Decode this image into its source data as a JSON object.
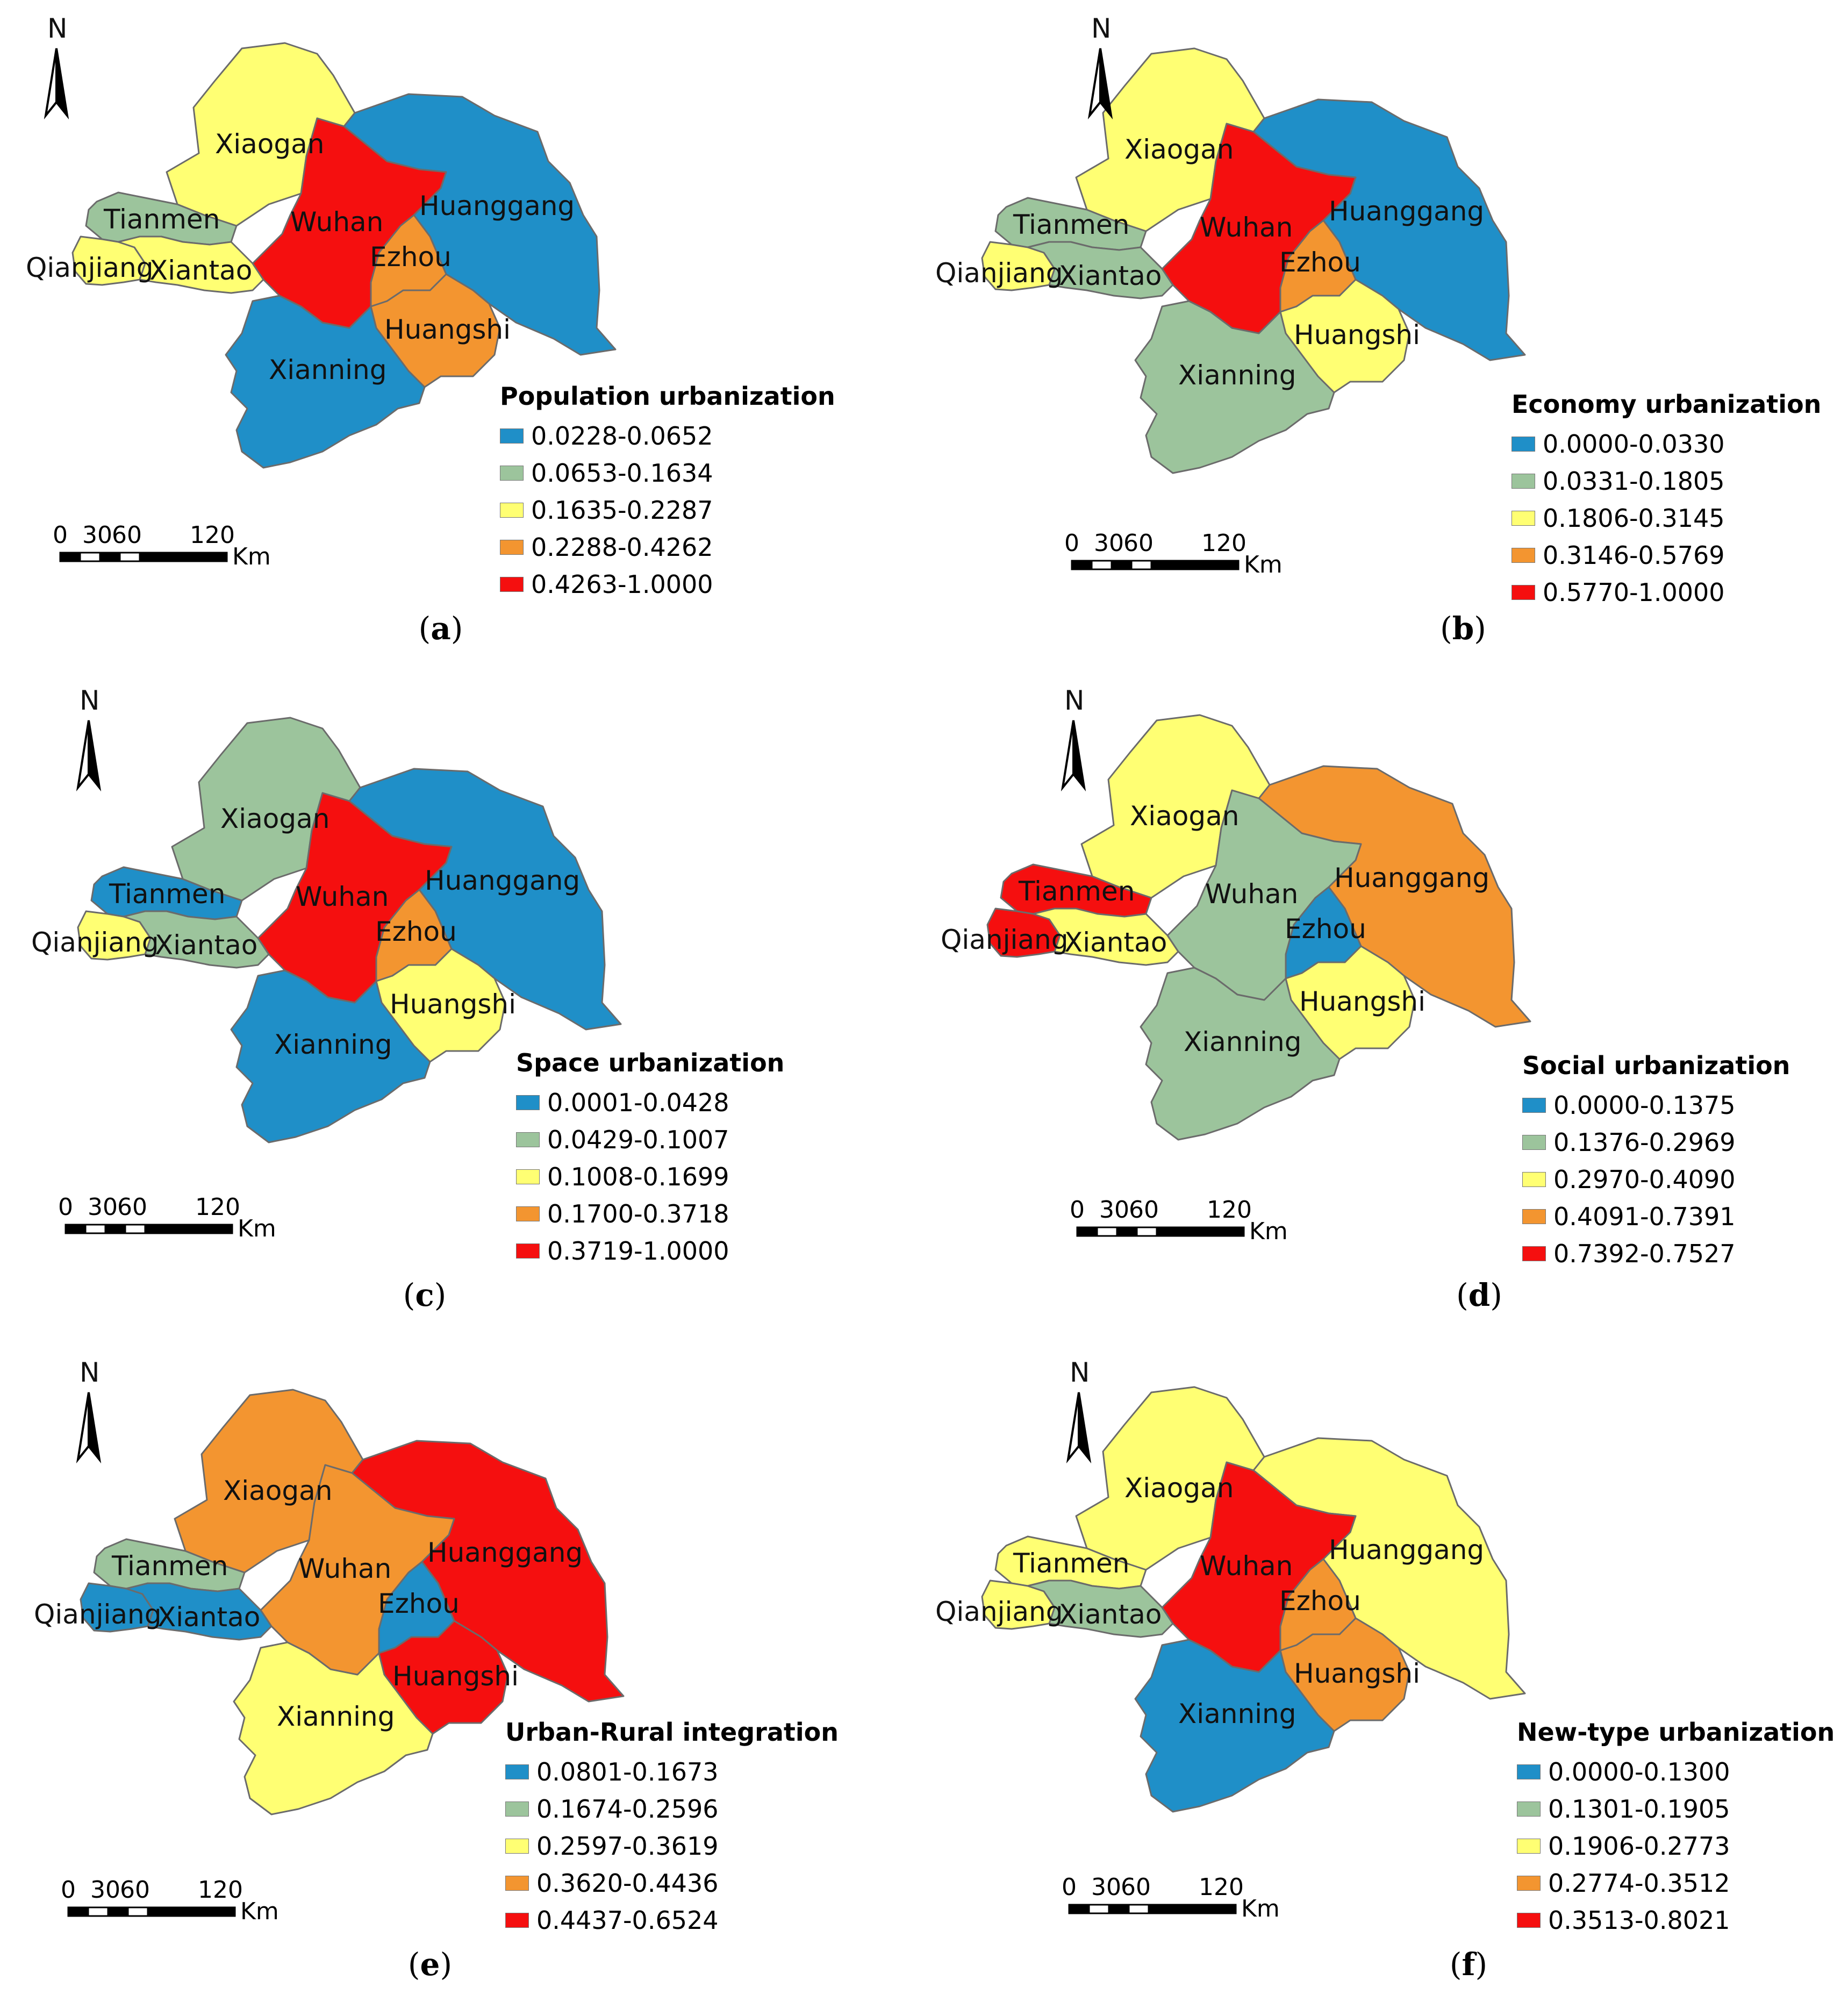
{
  "palette": {
    "blue": "#1f8fc8",
    "green": "#9cc49c",
    "yellow": "#ffff73",
    "orange": "#f39530",
    "red": "#f50f0f"
  },
  "common": {
    "north_label": "N",
    "scale": {
      "ticks": [
        "0",
        "30",
        "60",
        "120"
      ],
      "unit": "Km"
    },
    "regions": [
      "Xiaogan",
      "Tianmen",
      "Qianjiang",
      "Xiantao",
      "Wuhan",
      "Huanggang",
      "Ezhou",
      "Huangshi",
      "Xianning"
    ]
  },
  "panels": [
    {
      "letter": "a",
      "legend_title": "Population urbanization",
      "classes": [
        "0.0228-0.0652",
        "0.0653-0.1634",
        "0.1635-0.2287",
        "0.2288-0.4262",
        "0.4263-1.0000"
      ],
      "fills": {
        "Xiaogan": "yellow",
        "Tianmen": "green",
        "Qianjiang": "yellow",
        "Xiantao": "yellow",
        "Wuhan": "red",
        "Huanggang": "blue",
        "Ezhou": "orange",
        "Huangshi": "orange",
        "Xianning": "blue"
      }
    },
    {
      "letter": "b",
      "legend_title": "Economy urbanization",
      "classes": [
        "0.0000-0.0330",
        "0.0331-0.1805",
        "0.1806-0.3145",
        "0.3146-0.5769",
        "0.5770-1.0000"
      ],
      "fills": {
        "Xiaogan": "yellow",
        "Tianmen": "green",
        "Qianjiang": "yellow",
        "Xiantao": "green",
        "Wuhan": "red",
        "Huanggang": "blue",
        "Ezhou": "orange",
        "Huangshi": "yellow",
        "Xianning": "green"
      }
    },
    {
      "letter": "c",
      "legend_title": "Space urbanization",
      "classes": [
        "0.0001-0.0428",
        "0.0429-0.1007",
        "0.1008-0.1699",
        "0.1700-0.3718",
        "0.3719-1.0000"
      ],
      "fills": {
        "Xiaogan": "green",
        "Tianmen": "blue",
        "Qianjiang": "yellow",
        "Xiantao": "green",
        "Wuhan": "red",
        "Huanggang": "blue",
        "Ezhou": "orange",
        "Huangshi": "yellow",
        "Xianning": "blue"
      }
    },
    {
      "letter": "d",
      "legend_title": "Social urbanization",
      "classes": [
        "0.0000-0.1375",
        "0.1376-0.2969",
        "0.2970-0.4090",
        "0.4091-0.7391",
        "0.7392-0.7527"
      ],
      "fills": {
        "Xiaogan": "yellow",
        "Tianmen": "red",
        "Qianjiang": "red",
        "Xiantao": "yellow",
        "Wuhan": "green",
        "Huanggang": "orange",
        "Ezhou": "blue",
        "Huangshi": "yellow",
        "Xianning": "green"
      }
    },
    {
      "letter": "e",
      "legend_title": "Urban-Rural integration",
      "classes": [
        "0.0801-0.1673",
        "0.1674-0.2596",
        "0.2597-0.3619",
        "0.3620-0.4436",
        "0.4437-0.6524"
      ],
      "fills": {
        "Xiaogan": "orange",
        "Tianmen": "green",
        "Qianjiang": "blue",
        "Xiantao": "blue",
        "Wuhan": "orange",
        "Huanggang": "red",
        "Ezhou": "blue",
        "Huangshi": "red",
        "Xianning": "yellow"
      }
    },
    {
      "letter": "f",
      "legend_title": "New-type urbanization",
      "classes": [
        "0.0000-0.1300",
        "0.1301-0.1905",
        "0.1906-0.2773",
        "0.2774-0.3512",
        "0.3513-0.8021"
      ],
      "fills": {
        "Xiaogan": "yellow",
        "Tianmen": "yellow",
        "Qianjiang": "yellow",
        "Xiantao": "green",
        "Wuhan": "red",
        "Huanggang": "yellow",
        "Ezhou": "orange",
        "Huangshi": "orange",
        "Xianning": "blue"
      }
    }
  ]
}
